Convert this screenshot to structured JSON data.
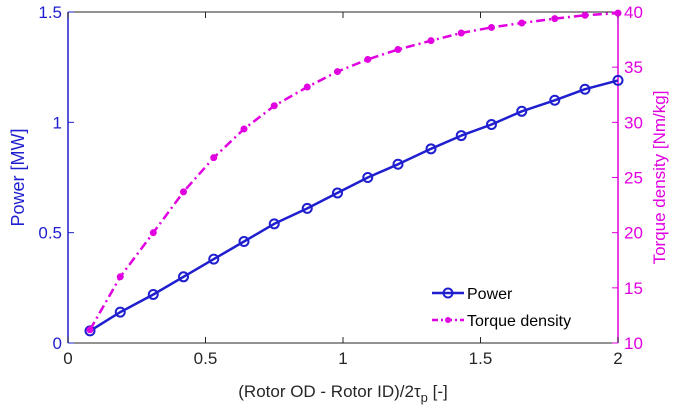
{
  "chart_data": {
    "type": "line",
    "title": "",
    "xlabel": "(Rotor OD - Rotor ID)/2τ",
    "xlabel_subscript": "p",
    "xlabel_suffix": "[-]",
    "ylabel_left": "Power [MW]",
    "ylabel_right": "Torque density [Nm/kg]",
    "xlim": [
      0,
      2
    ],
    "ylim_left": [
      0,
      1.5
    ],
    "ylim_right": [
      10,
      40
    ],
    "x_ticks": [
      0,
      0.5,
      1,
      1.5,
      2
    ],
    "x_tick_labels": [
      "0",
      "0.5",
      "1",
      "1.5",
      "2"
    ],
    "y_left_ticks": [
      0,
      0.5,
      1,
      1.5
    ],
    "y_left_tick_labels": [
      "0",
      "0.5",
      "1",
      "1.5"
    ],
    "y_right_ticks": [
      10,
      15,
      20,
      25,
      30,
      35,
      40
    ],
    "y_right_tick_labels": [
      "10",
      "15",
      "20",
      "25",
      "30",
      "35",
      "40"
    ],
    "grid": false,
    "legend_position": "bottom-right",
    "x": [
      0.08,
      0.19,
      0.31,
      0.42,
      0.53,
      0.64,
      0.75,
      0.87,
      0.98,
      1.09,
      1.2,
      1.32,
      1.43,
      1.54,
      1.65,
      1.77,
      1.88,
      2.0
    ],
    "series": [
      {
        "name": "Power",
        "axis": "left",
        "color": "#1f1fcf",
        "line_style": "solid",
        "marker": "circle",
        "values": [
          0.055,
          0.14,
          0.22,
          0.3,
          0.38,
          0.46,
          0.54,
          0.61,
          0.68,
          0.75,
          0.81,
          0.88,
          0.94,
          0.99,
          1.05,
          1.1,
          1.15,
          1.19
        ]
      },
      {
        "name": "Torque density",
        "axis": "right",
        "color": "#e000e0",
        "line_style": "dashdot",
        "marker": "dot",
        "values": [
          11.2,
          16.0,
          20.0,
          23.7,
          26.8,
          29.4,
          31.5,
          33.2,
          34.6,
          35.7,
          36.6,
          37.4,
          38.1,
          38.6,
          39.0,
          39.4,
          39.7,
          39.9
        ]
      }
    ]
  }
}
